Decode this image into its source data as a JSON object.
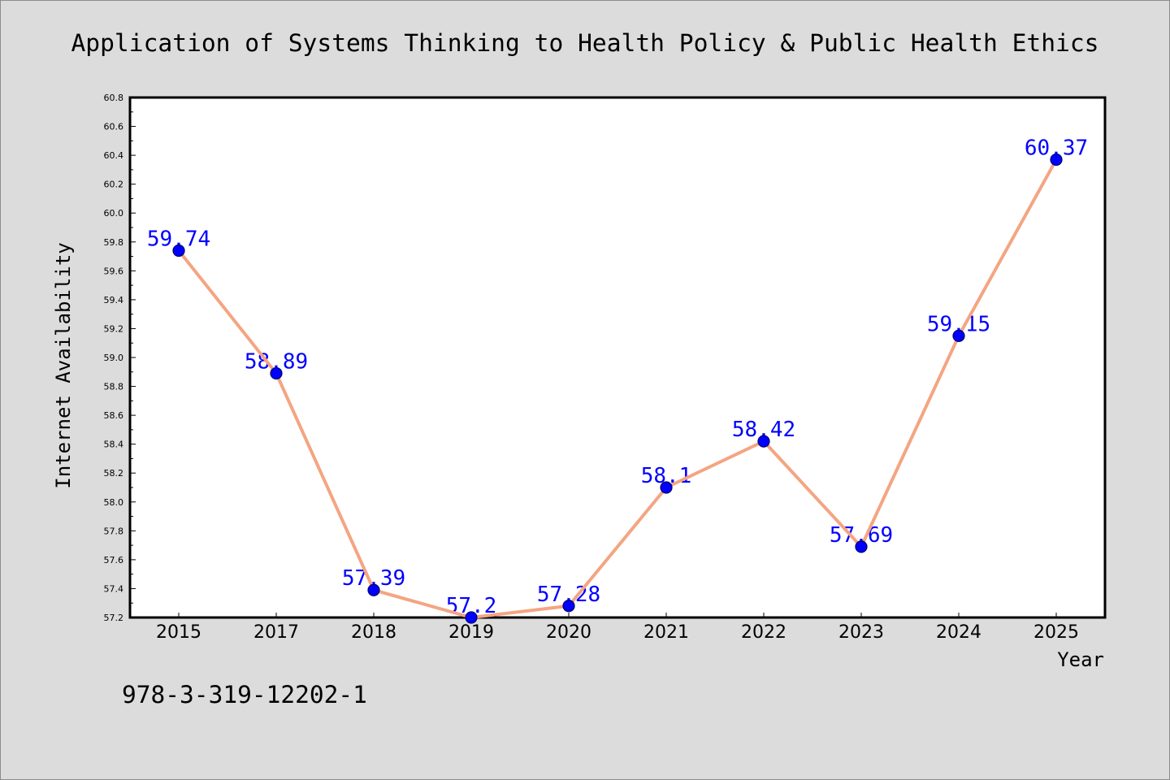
{
  "chart_data": {
    "type": "line",
    "title": "Application of Systems Thinking to Health Policy & Public Health Ethics",
    "xlabel": "Year",
    "ylabel": "Internet Availability",
    "categories": [
      "2015",
      "2017",
      "2018",
      "2019",
      "2020",
      "2021",
      "2022",
      "2023",
      "2024",
      "2025"
    ],
    "values": [
      59.74,
      58.89,
      57.39,
      57.2,
      57.28,
      58.1,
      58.42,
      57.69,
      59.15,
      60.37
    ],
    "data_labels": [
      "59.74",
      "58.89",
      "57.39",
      "57.2",
      "57.28",
      "58.1",
      "58.42",
      "57.69",
      "59.15",
      "60.37"
    ],
    "ylim": [
      57.2,
      60.8
    ],
    "yticks": [
      "57.2",
      "57.4",
      "57.6",
      "57.8",
      "58.0",
      "58.2",
      "58.4",
      "58.6",
      "58.8",
      "59.0",
      "59.2",
      "59.4",
      "59.6",
      "59.8",
      "60.0",
      "60.2",
      "60.4",
      "60.6",
      "60.8"
    ],
    "grid": false,
    "legend": "none",
    "line_color": "#f4a582",
    "marker_color": "#0000ff",
    "marker_edge_color": "#00006a",
    "label_color": "#0000ff"
  },
  "annotation": "978-3-319-12202-1",
  "background_color": "#dcdcdc"
}
